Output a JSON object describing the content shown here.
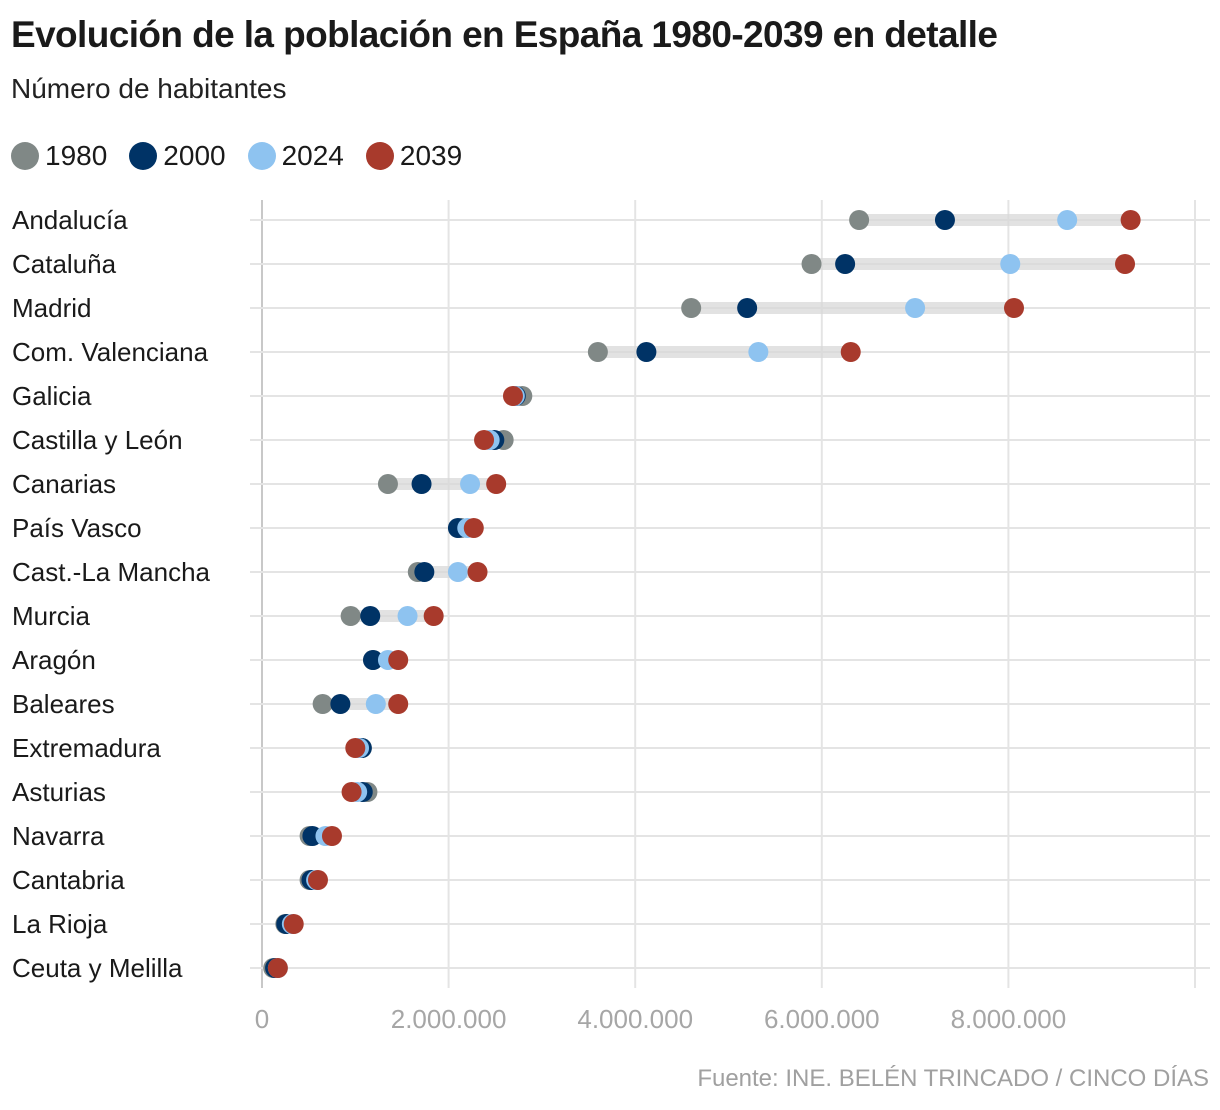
{
  "title": "Evolución de la población en España 1980-2039 en detalle",
  "subtitle": "Número de habitantes",
  "source": "Fuente: INE. BELÉN TRINCADO / CINCO DÍAS",
  "legend": [
    {
      "label": "1980",
      "color": "#808886"
    },
    {
      "label": "2000",
      "color": "#003366"
    },
    {
      "label": "2024",
      "color": "#8ec3f0"
    },
    {
      "label": "2039",
      "color": "#a83a2c"
    }
  ],
  "chart_data": {
    "type": "scatter",
    "subtype": "dumbbell",
    "title": "Evolución de la población en España 1980-2039 en detalle",
    "subtitle": "Número de habitantes",
    "xlabel": "",
    "ylabel": "",
    "xlim": [
      0,
      10000000
    ],
    "x_ticks": [
      0,
      2000000,
      4000000,
      6000000,
      8000000,
      10000000
    ],
    "x_tick_labels": [
      "0",
      "2.000.000",
      "4.000.000",
      "6.000.000",
      "8.000.000",
      ""
    ],
    "grid": true,
    "legend_position": "top-left",
    "series_names": [
      "1980",
      "2000",
      "2024",
      "2039"
    ],
    "series_colors": [
      "#808886",
      "#003366",
      "#8ec3f0",
      "#a83a2c"
    ],
    "categories": [
      "Andalucía",
      "Cataluña",
      "Madrid",
      "Com. Valenciana",
      "Galicia",
      "Castilla y León",
      "Canarias",
      "País Vasco",
      "Cast.-La Mancha",
      "Murcia",
      "Aragón",
      "Baleares",
      "Extremadura",
      "Asturias",
      "Navarra",
      "Cantabria",
      "La Rioja",
      "Ceuta y Melilla"
    ],
    "series": [
      {
        "name": "1980",
        "values": [
          6400000,
          5890000,
          4600000,
          3600000,
          2790000,
          2590000,
          1350000,
          2140000,
          1670000,
          950000,
          1190000,
          650000,
          1070000,
          1130000,
          510000,
          510000,
          250000,
          120000
        ]
      },
      {
        "name": "2000",
        "values": [
          7320000,
          6250000,
          5200000,
          4120000,
          2720000,
          2490000,
          1710000,
          2100000,
          1740000,
          1160000,
          1190000,
          840000,
          1070000,
          1080000,
          540000,
          530000,
          260000,
          140000
        ]
      },
      {
        "name": "2024",
        "values": [
          8630000,
          8020000,
          7000000,
          5320000,
          2710000,
          2440000,
          2230000,
          2200000,
          2100000,
          1560000,
          1350000,
          1220000,
          1040000,
          1020000,
          680000,
          580000,
          320000,
          170000
        ]
      },
      {
        "name": "2039",
        "values": [
          9310000,
          9250000,
          8060000,
          6310000,
          2690000,
          2380000,
          2510000,
          2270000,
          2310000,
          1840000,
          1460000,
          1460000,
          1000000,
          960000,
          750000,
          600000,
          340000,
          170000
        ]
      }
    ]
  }
}
